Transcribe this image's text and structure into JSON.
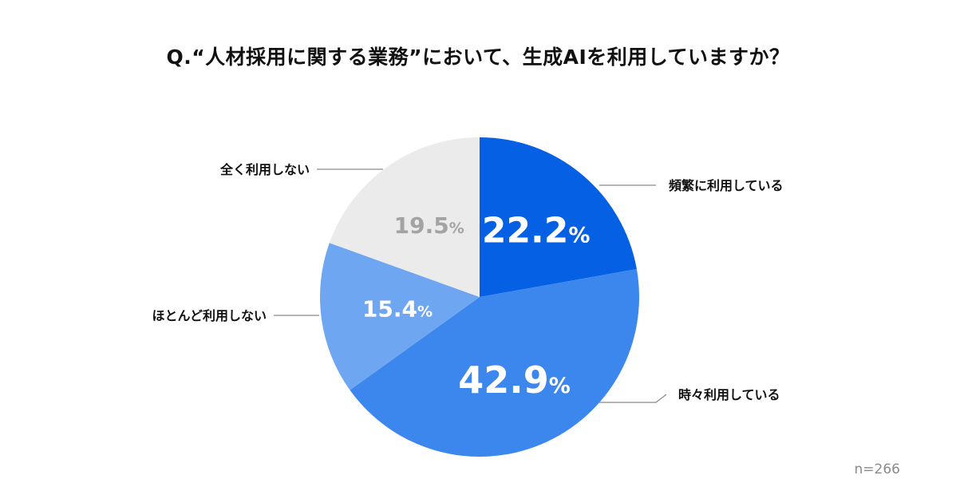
{
  "chart_data": {
    "type": "pie",
    "title": "Q.“人材採用に関する業務”において、生成AIを利用していますか？",
    "categories": [
      "頻繁に利用している",
      "時々利用している",
      "ほとんど利用しない",
      "全く利用しない"
    ],
    "values": [
      22.2,
      42.9,
      15.4,
      19.5
    ],
    "value_labels": [
      "22.2",
      "42.9",
      "15.4",
      "19.5"
    ],
    "unit": "%",
    "colors": [
      "#0560E3",
      "#3B87EE",
      "#6FA6F2",
      "#EBEBEB"
    ],
    "label_colors": [
      "#ffffff",
      "#ffffff",
      "#ffffff",
      "#a3a3a3"
    ],
    "start_angle": "12 o'clock",
    "direction": "clockwise",
    "sample_size": "n=266"
  }
}
